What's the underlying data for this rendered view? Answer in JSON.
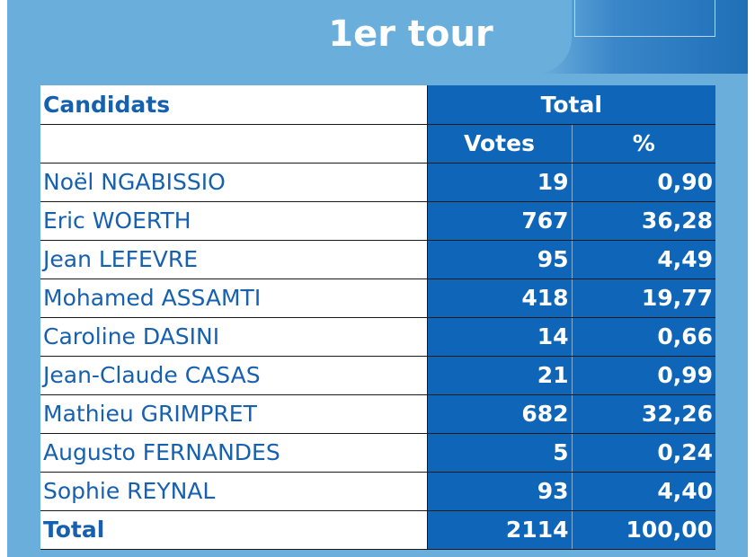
{
  "header": {
    "title": "1er tour"
  },
  "table": {
    "col_candidates": "Candidats",
    "col_total": "Total",
    "col_votes": "Votes",
    "col_percent": "%",
    "rows": [
      {
        "name": "Noël NGABISSIO",
        "votes": "19",
        "percent": "0,90"
      },
      {
        "name": "Eric WOERTH",
        "votes": "767",
        "percent": "36,28"
      },
      {
        "name": "Jean LEFEVRE",
        "votes": "95",
        "percent": "4,49"
      },
      {
        "name": "Mohamed ASSAMTI",
        "votes": "418",
        "percent": "19,77"
      },
      {
        "name": "Caroline DASINI",
        "votes": "14",
        "percent": "0,66"
      },
      {
        "name": "Jean-Claude CASAS",
        "votes": "21",
        "percent": "0,99"
      },
      {
        "name": "Mathieu GRIMPRET",
        "votes": "682",
        "percent": "32,26"
      },
      {
        "name": "Augusto FERNANDES",
        "votes": "5",
        "percent": "0,24"
      },
      {
        "name": "Sophie REYNAL",
        "votes": "93",
        "percent": "4,40"
      }
    ],
    "total": {
      "label": "Total",
      "votes": "2114",
      "percent": "100,00"
    }
  },
  "colors": {
    "frame": "#6aaedb",
    "cell_blue": "#0f66b8",
    "name_text": "#1660b0",
    "header_text": "#ffffff"
  }
}
